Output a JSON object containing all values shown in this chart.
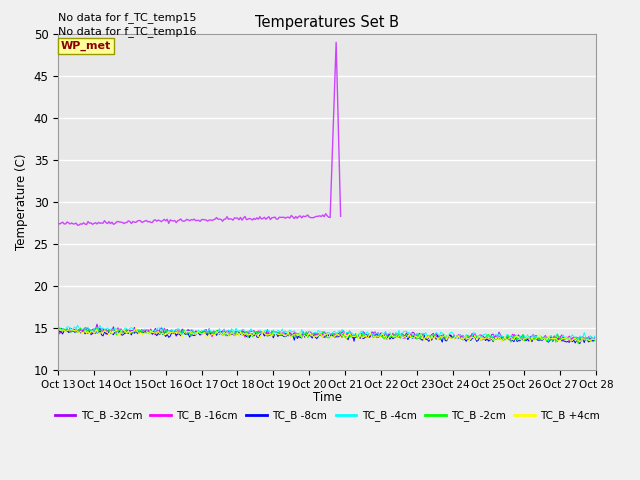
{
  "title": "Temperatures Set B",
  "ylabel": "Temperature (C)",
  "xlabel": "Time",
  "ylim": [
    10,
    50
  ],
  "yticks": [
    10,
    15,
    20,
    25,
    30,
    35,
    40,
    45,
    50
  ],
  "no_data_text": [
    "No data for f_TC_temp15",
    "No data for f_TC_temp16"
  ],
  "wp_met_label": "WP_met",
  "wp_met_color": "#cc44ff",
  "legend_entries": [
    {
      "label": "TC_B -32cm",
      "color": "#aa00ff"
    },
    {
      "label": "TC_B -16cm",
      "color": "#ff00ff"
    },
    {
      "label": "TC_B -8cm",
      "color": "#0000ff"
    },
    {
      "label": "TC_B -4cm",
      "color": "#00ffff"
    },
    {
      "label": "TC_B -2cm",
      "color": "#00ff00"
    },
    {
      "label": "TC_B +4cm",
      "color": "#ffff00"
    }
  ],
  "bg_color": "#e8e8e8",
  "grid_color": "#ffffff",
  "n_points": 360,
  "spike_index": 183,
  "spike_value": 49.0,
  "wp_met_base_start": 27.4,
  "wp_met_base_end": 28.3,
  "tc_base": 14.7,
  "tc_noise": 0.18,
  "tc_trend": -0.003,
  "x_tick_labels": [
    "Oct 13",
    "Oct 14",
    "Oct 15",
    "Oct 16",
    "Oct 17",
    "Oct 18",
    "Oct 19",
    "Oct 20",
    "Oct 21",
    "Oct 22",
    "Oct 23",
    "Oct 24",
    "Oct 25",
    "Oct 26",
    "Oct 27",
    "Oct 28"
  ],
  "x_tick_positions": [
    0,
    24,
    48,
    72,
    96,
    120,
    144,
    168,
    192,
    216,
    240,
    264,
    288,
    312,
    336,
    360
  ],
  "figsize": [
    6.4,
    4.8
  ],
  "dpi": 100,
  "fig_bg": "#f0f0f0"
}
